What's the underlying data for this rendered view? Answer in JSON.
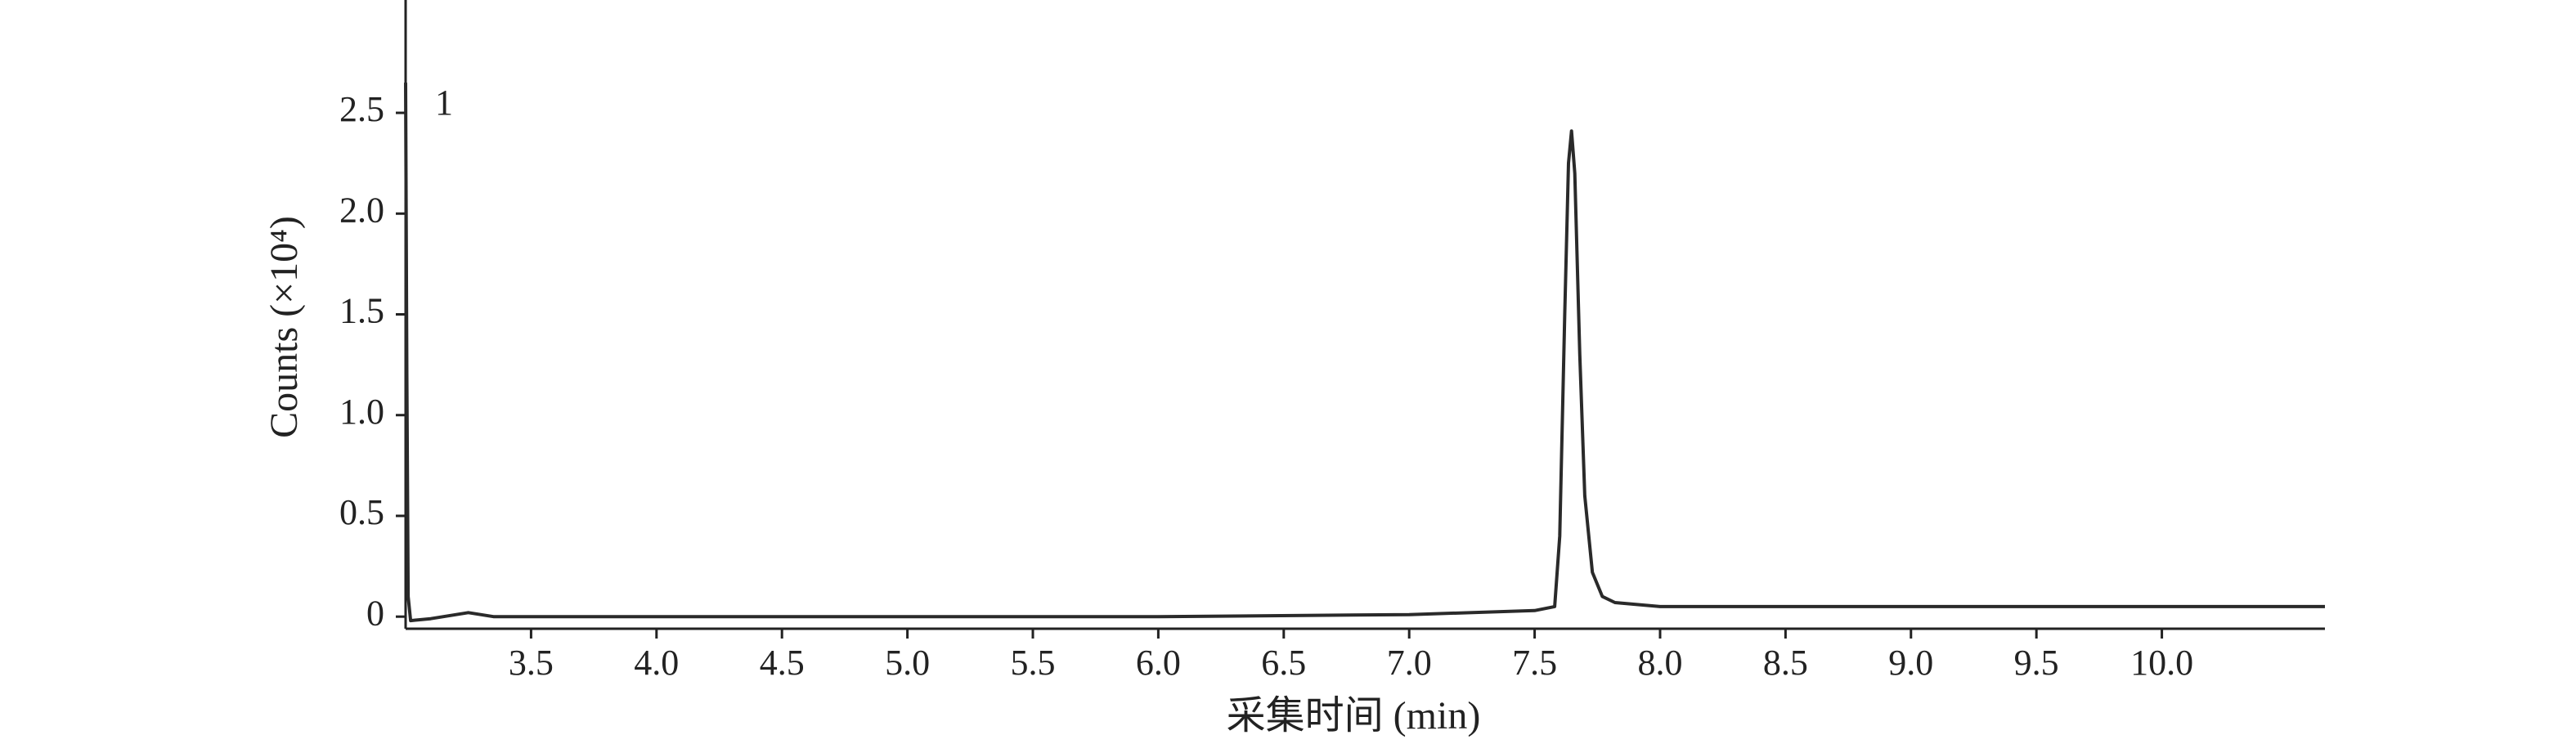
{
  "chart_data": {
    "type": "line",
    "xlabel": "采集时间 (min)",
    "ylabel": "Counts (×10⁴)",
    "annotation": "1",
    "xlim": [
      3.0,
      10.65
    ],
    "ylim": [
      -0.06,
      3.06
    ],
    "xticks": [
      {
        "value": 3.5,
        "label": "3.5"
      },
      {
        "value": 4,
        "label": "4.0"
      },
      {
        "value": 4.5,
        "label": "4.5"
      },
      {
        "value": 5,
        "label": "5.0"
      },
      {
        "value": 5.5,
        "label": "5.5"
      },
      {
        "value": 6,
        "label": "6.0"
      },
      {
        "value": 6.5,
        "label": "6.5"
      },
      {
        "value": 7,
        "label": "7.0"
      },
      {
        "value": 7.5,
        "label": "7.5"
      },
      {
        "value": 8,
        "label": "8.0"
      },
      {
        "value": 8.5,
        "label": "8.5"
      },
      {
        "value": 9,
        "label": "9.0"
      },
      {
        "value": 9.5,
        "label": "9.5"
      },
      {
        "value": 10,
        "label": "10.0"
      }
    ],
    "yticks": [
      0,
      0.5,
      {
        "value": 1,
        "label": "1.0"
      },
      1.5,
      {
        "value": 2,
        "label": "2.0"
      },
      2.5
    ],
    "series": [
      {
        "color": "#2a2a2a",
        "x": [
          3.0,
          3.005,
          3.01,
          3.02,
          3.1,
          3.25,
          3.35,
          4.0,
          5.0,
          6.0,
          7.0,
          7.5,
          7.58,
          7.6,
          7.62,
          7.635,
          7.647,
          7.66,
          7.68,
          7.7,
          7.73,
          7.77,
          7.82,
          8.0,
          9.0,
          10.0,
          10.65
        ],
        "values": [
          2.65,
          1.2,
          0.1,
          -0.02,
          -0.01,
          0.02,
          0.0,
          0.0,
          0.0,
          0.0,
          0.01,
          0.03,
          0.05,
          0.4,
          1.5,
          2.25,
          2.41,
          2.2,
          1.3,
          0.6,
          0.22,
          0.1,
          0.07,
          0.05,
          0.05,
          0.05,
          0.05
        ]
      }
    ]
  }
}
